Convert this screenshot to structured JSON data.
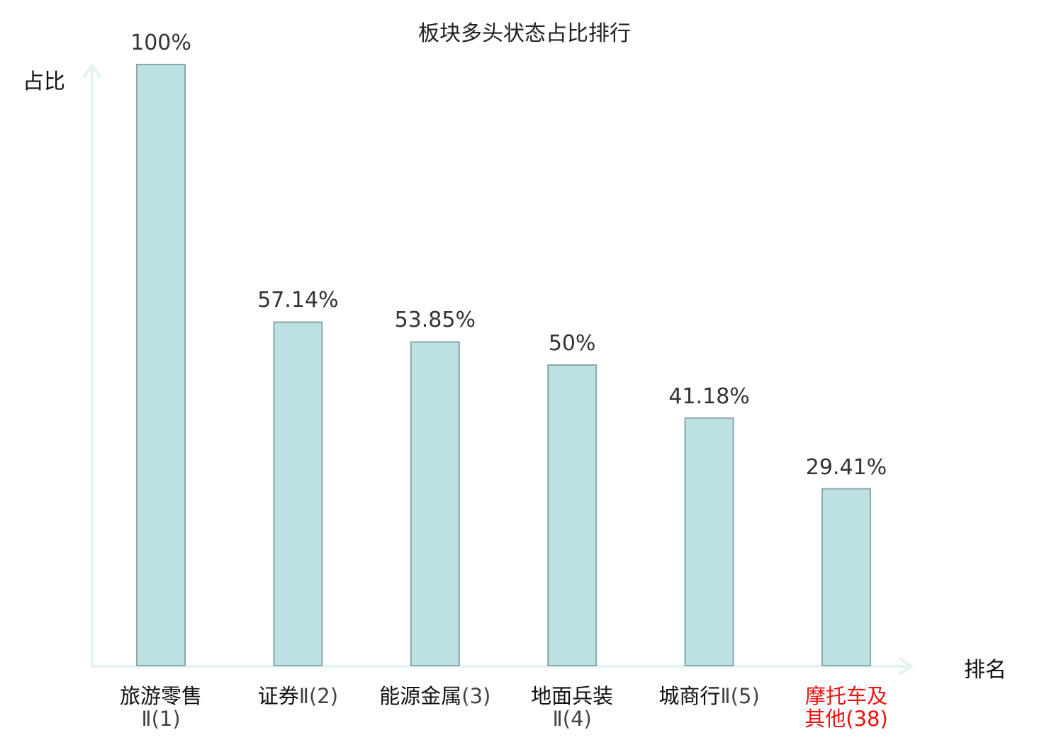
{
  "chart_data": {
    "type": "bar",
    "title": "板块多头状态占比排行",
    "ylabel": "占比",
    "xlabel": "排名",
    "ylim": [
      0,
      100
    ],
    "grid": false,
    "categories": [
      {
        "name": "旅游零售",
        "suffix": "Ⅱ(1)",
        "highlight": false
      },
      {
        "name": "证券",
        "suffix": "Ⅱ(2)",
        "highlight": false
      },
      {
        "name": "能源金属",
        "suffix": "(3)",
        "highlight": false
      },
      {
        "name": "地面兵装",
        "suffix": "Ⅱ(4)",
        "highlight": false
      },
      {
        "name": "城商行",
        "suffix": "Ⅱ(5)",
        "highlight": false
      },
      {
        "name": "摩托车及",
        "suffix": "其他(38)",
        "highlight": true
      }
    ],
    "values": [
      100,
      57.14,
      53.85,
      50,
      41.18,
      29.41
    ],
    "value_labels": [
      "100%",
      "57.14%",
      "53.85%",
      "50%",
      "41.18%",
      "29.41%"
    ],
    "colors": {
      "bar_fill": "#bde0e3",
      "bar_stroke": "#8aa7aa",
      "axis": "#e2f3f2",
      "highlight_text": "#ee1111"
    }
  }
}
